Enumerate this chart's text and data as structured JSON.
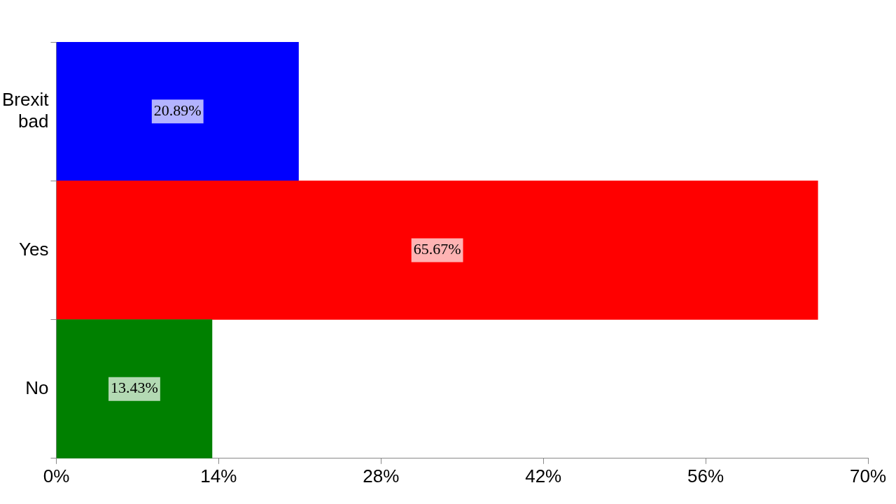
{
  "chart_data": {
    "type": "bar",
    "orientation": "horizontal",
    "categories": [
      "Brexit bad",
      "Yes",
      "No"
    ],
    "values": [
      20.89,
      65.67,
      13.43
    ],
    "colors": [
      "#0000ff",
      "#ff0000",
      "#008000"
    ],
    "value_labels": [
      "20.89%",
      "65.67%",
      "13.43%"
    ],
    "xlim": [
      0,
      70
    ],
    "xticks": [
      {
        "value": 0,
        "label": "0%"
      },
      {
        "value": 14,
        "label": "14%"
      },
      {
        "value": 28,
        "label": "28%"
      },
      {
        "value": 42,
        "label": "42%"
      },
      {
        "value": 56,
        "label": "56%"
      },
      {
        "value": 70,
        "label": "70%"
      }
    ],
    "grid": false,
    "legend": false
  }
}
